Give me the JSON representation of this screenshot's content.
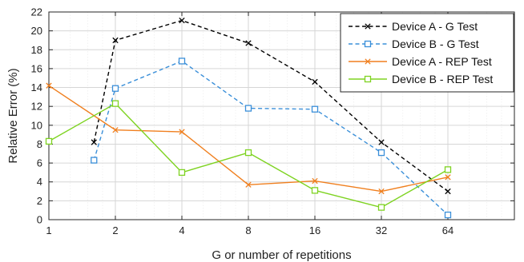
{
  "chart_data": {
    "type": "line",
    "title": "",
    "xlabel": "G or number of repetitions",
    "ylabel": "Relative Error (%)",
    "x_scale": "log2",
    "x_ticks": [
      1,
      2,
      4,
      8,
      16,
      32,
      64
    ],
    "x_tick_labels": [
      "1",
      "2",
      "4",
      "8",
      "16",
      "32",
      "64"
    ],
    "xlim": [
      1,
      128
    ],
    "ylim": [
      0,
      22
    ],
    "y_ticks": [
      0,
      2,
      4,
      6,
      8,
      10,
      12,
      14,
      16,
      18,
      20,
      22
    ],
    "y_tick_labels": [
      "0",
      "2",
      "4",
      "6",
      "8",
      "10",
      "12",
      "14",
      "16",
      "18",
      "20",
      "22"
    ],
    "grid": true,
    "legend_position": "top-right",
    "series": [
      {
        "name": "Device A - G Test",
        "color": "#000000",
        "dash": "dashed",
        "marker": "x",
        "x": [
          1.6,
          2,
          4,
          8,
          16,
          32,
          64
        ],
        "y": [
          8.2,
          19.0,
          21.1,
          18.7,
          14.6,
          8.2,
          3.0
        ]
      },
      {
        "name": "Device B - G Test",
        "color": "#3a8fd9",
        "dash": "dashed",
        "marker": "square",
        "x": [
          1.6,
          2,
          4,
          8,
          16,
          32,
          64
        ],
        "y": [
          6.3,
          13.9,
          16.8,
          11.8,
          11.7,
          7.1,
          0.5
        ]
      },
      {
        "name": "Device A - REP Test",
        "color": "#f07f1e",
        "dash": "solid",
        "marker": "x",
        "x": [
          1,
          2,
          4,
          8,
          16,
          32,
          64
        ],
        "y": [
          14.2,
          9.5,
          9.3,
          3.7,
          4.1,
          3.0,
          4.5
        ]
      },
      {
        "name": "Device B - REP Test",
        "color": "#7ed321",
        "dash": "solid",
        "marker": "square",
        "x": [
          1,
          2,
          4,
          8,
          16,
          32,
          64
        ],
        "y": [
          8.3,
          12.3,
          5.0,
          7.1,
          3.1,
          1.3,
          5.3
        ]
      }
    ]
  }
}
